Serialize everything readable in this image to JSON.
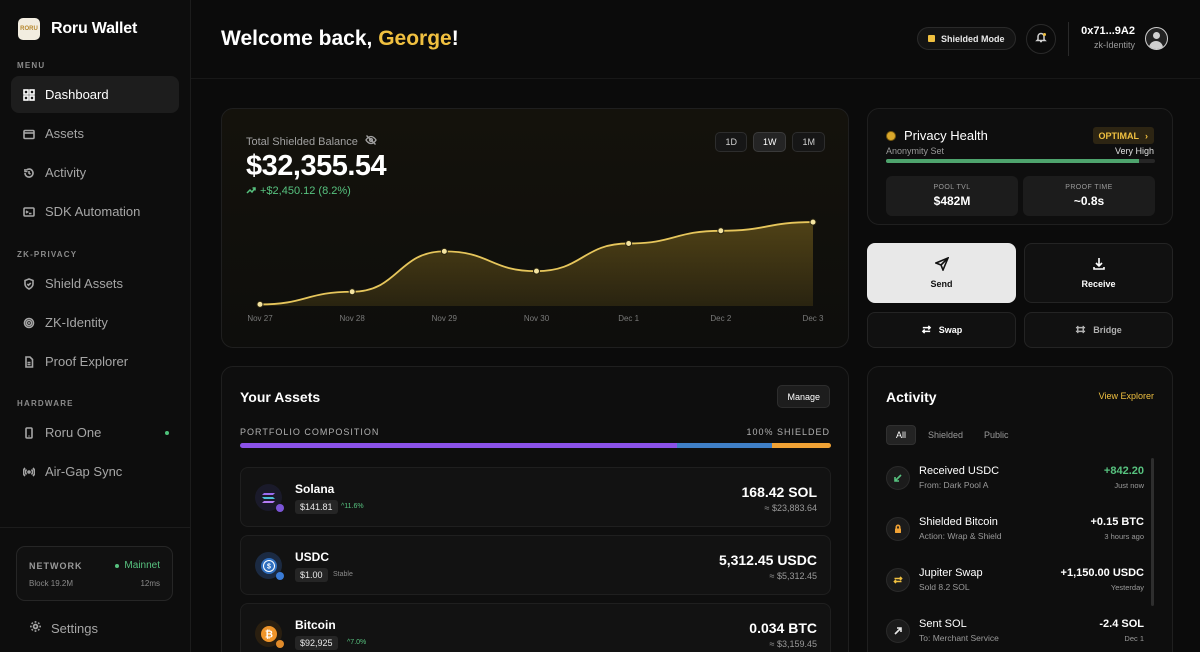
{
  "app": {
    "name": "Roru Wallet",
    "logo_text": "RORU"
  },
  "sidebar": {
    "menu_label": "MENU",
    "menu": [
      {
        "label": "Dashboard",
        "icon": "grid-icon",
        "active": true
      },
      {
        "label": "Assets",
        "icon": "wallet-icon"
      },
      {
        "label": "Activity",
        "icon": "history-icon"
      },
      {
        "label": "SDK Automation",
        "icon": "terminal-icon"
      }
    ],
    "zk_label": "ZK-PRIVACY",
    "zk": [
      {
        "label": "Shield Assets",
        "icon": "shield-icon"
      },
      {
        "label": "ZK-Identity",
        "icon": "fingerprint-icon"
      },
      {
        "label": "Proof Explorer",
        "icon": "file-icon"
      }
    ],
    "hw_label": "HARDWARE",
    "hardware": [
      {
        "label": "Roru One",
        "icon": "device-icon",
        "status": "online"
      },
      {
        "label": "Air-Gap Sync",
        "icon": "broadcast-icon"
      }
    ],
    "network": {
      "label": "NETWORK",
      "status": "Mainnet",
      "block": "Block 19.2M",
      "latency": "12ms"
    },
    "settings_label": "Settings"
  },
  "header": {
    "welcome_prefix": "Welcome back, ",
    "user_name": "George",
    "welcome_suffix": "!",
    "shielded_mode": "Shielded Mode",
    "address": "0x71...9A2",
    "identity": "zk-Identity"
  },
  "balance": {
    "label": "Total Shielded Balance",
    "value": "$32,355.54",
    "change": "+$2,450.12 (8.2%)",
    "ranges": [
      "1D",
      "1W",
      "1M"
    ],
    "active_range": "1W"
  },
  "chart_data": {
    "type": "area",
    "categories": [
      "Nov 27",
      "Nov 28",
      "Nov 29",
      "Nov 30",
      "Dec 1",
      "Dec 2",
      "Dec 3"
    ],
    "values": [
      0.2,
      1.8,
      6.9,
      4.4,
      7.9,
      9.5,
      10.6
    ],
    "ylim": [
      0,
      12
    ],
    "grid": false,
    "line_color": "#e6c65c",
    "fill_color": "#5a4a18"
  },
  "privacy": {
    "title": "Privacy Health",
    "badge": "OPTIMAL",
    "anonymity_label": "Anonymity Set",
    "anonymity_value": "Very High",
    "anonymity_level": 0.94,
    "pool_tvl_label": "POOL TVL",
    "pool_tvl": "$482M",
    "proof_time_label": "PROOF TIME",
    "proof_time": "~0.8s"
  },
  "actions": {
    "send": "Send",
    "receive": "Receive",
    "swap": "Swap",
    "bridge": "Bridge"
  },
  "assets": {
    "title": "Your Assets",
    "manage": "Manage",
    "composition_label": "PORTFOLIO COMPOSITION",
    "shielded_pct": "100% SHIELDED",
    "composition": [
      {
        "name": "Solana",
        "share": 0.74,
        "color": "#8b52e8"
      },
      {
        "name": "USDC",
        "share": 0.16,
        "color": "#3f7fc6"
      },
      {
        "name": "Bitcoin",
        "share": 0.1,
        "color": "#f0a235"
      }
    ],
    "items": [
      {
        "name": "Solana",
        "price": "$141.81",
        "change": "11.6%",
        "amount": "168.42 SOL",
        "usd": "≈ $23,883.64",
        "icon": "solana-icon"
      },
      {
        "name": "USDC",
        "price": "$1.00",
        "change": "Stable",
        "amount": "5,312.45 USDC",
        "usd": "≈ $5,312.45",
        "icon": "usdc-icon"
      },
      {
        "name": "Bitcoin",
        "price": "$92,925",
        "change": "7.0%",
        "amount": "0.034 BTC",
        "usd": "≈ $3,159.45",
        "icon": "bitcoin-icon"
      }
    ]
  },
  "activity": {
    "title": "Activity",
    "view_explorer": "View Explorer",
    "tabs": [
      "All",
      "Shielded",
      "Public"
    ],
    "items": [
      {
        "title": "Received USDC",
        "sub": "From: Dark Pool A",
        "value": "+842.20",
        "time": "Just now",
        "icon": "arrow-down-left-icon",
        "color": "#57c27f"
      },
      {
        "title": "Shielded Bitcoin",
        "sub": "Action: Wrap & Shield",
        "value": "+0.15 BTC",
        "time": "3 hours ago",
        "icon": "lock-icon",
        "color": "#ffffff"
      },
      {
        "title": "Jupiter Swap",
        "sub": "Sold 8.2 SOL",
        "value": "+1,150.00 USDC",
        "time": "Yesterday",
        "icon": "swap-icon",
        "color": "#ffffff"
      },
      {
        "title": "Sent SOL",
        "sub": "To: Merchant Service",
        "value": "-2.4 SOL",
        "time": "Dec 1",
        "icon": "arrow-up-right-icon",
        "color": "#ffffff"
      }
    ]
  }
}
